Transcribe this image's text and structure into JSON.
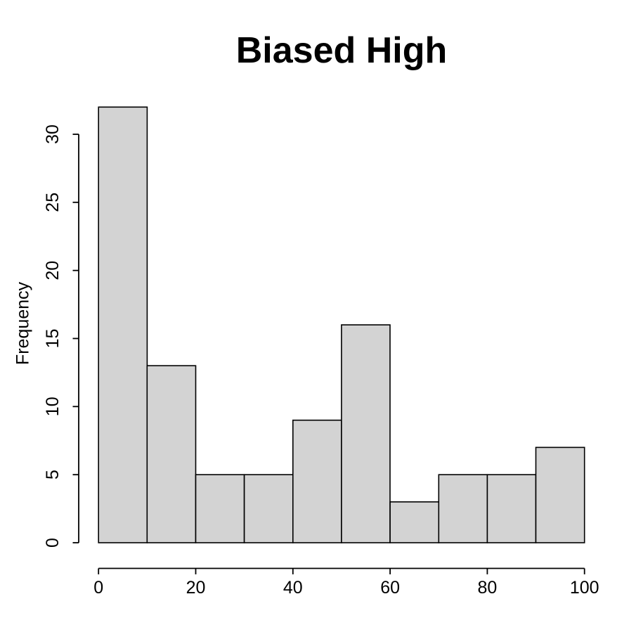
{
  "chart_data": {
    "type": "bar",
    "subtype": "histogram",
    "title": "Biased High",
    "xlabel": "",
    "ylabel": "Frequency",
    "bin_edges": [
      0,
      10,
      20,
      30,
      40,
      50,
      60,
      70,
      80,
      90,
      100
    ],
    "categories": [
      "0-10",
      "10-20",
      "20-30",
      "30-40",
      "40-50",
      "50-60",
      "60-70",
      "70-80",
      "80-90",
      "90-100"
    ],
    "values": [
      32,
      13,
      5,
      5,
      9,
      16,
      3,
      5,
      5,
      7
    ],
    "xlim": [
      0,
      100
    ],
    "ylim": [
      0,
      30
    ],
    "x_ticks": [
      0,
      20,
      40,
      60,
      80,
      100
    ],
    "y_ticks": [
      0,
      5,
      10,
      15,
      20,
      25,
      30
    ],
    "grid": false,
    "legend": null,
    "colors": {
      "bar_fill": "#d3d3d3",
      "bar_stroke": "#000000",
      "axis": "#000000",
      "text": "#000000",
      "background": "#ffffff"
    }
  }
}
